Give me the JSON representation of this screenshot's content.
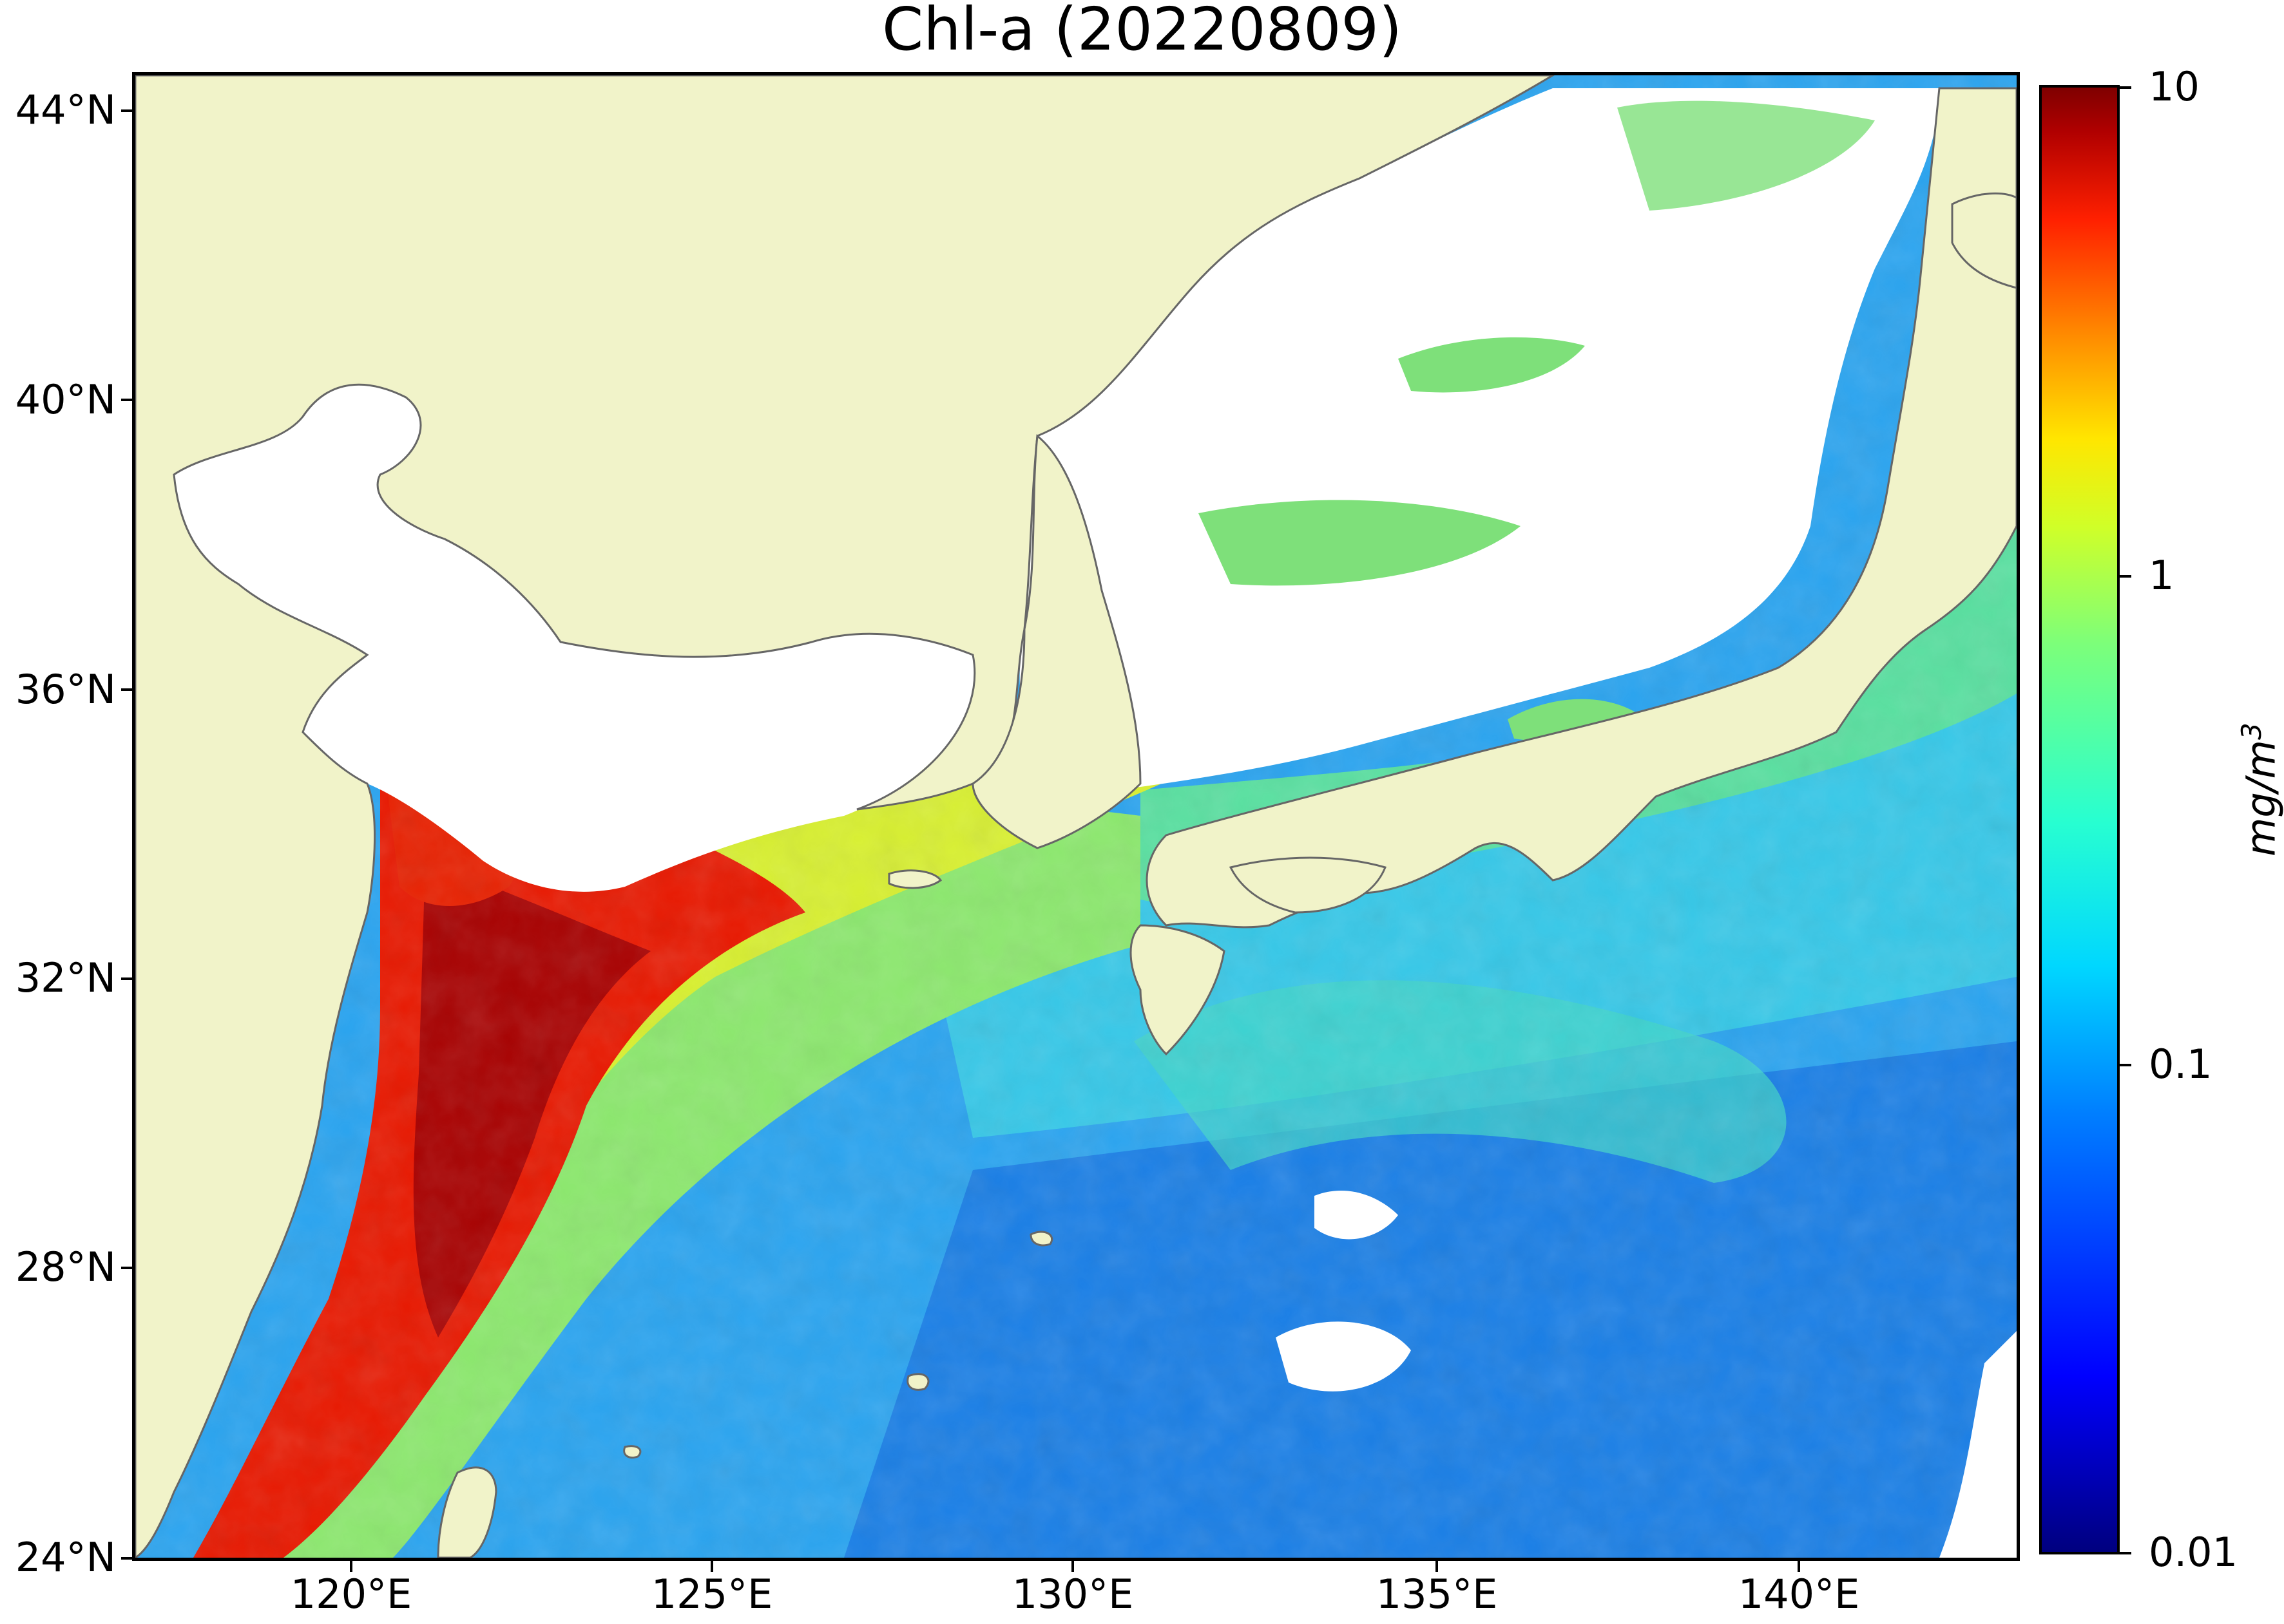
{
  "title": "Chl-a (20220809)",
  "map": {
    "lat_ticks": [
      "44°N",
      "40°N",
      "36°N",
      "32°N",
      "28°N",
      "24°N"
    ],
    "lon_ticks": [
      "120°E",
      "125°E",
      "130°E",
      "135°E",
      "140°E"
    ],
    "land_color": "#f1f3c9",
    "no_data_color": "#ffffff",
    "coastline_color": "#666666"
  },
  "colorbar": {
    "scale": "log",
    "tick_labels": [
      "10",
      "1",
      "0.1",
      "0.01"
    ],
    "unit": "mg/m",
    "unit_superscript": "3",
    "colormap": "jet"
  }
}
